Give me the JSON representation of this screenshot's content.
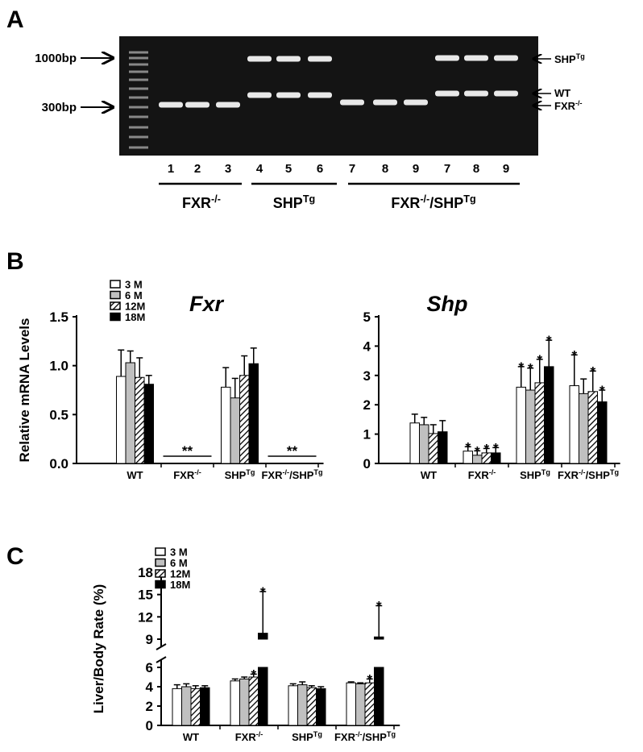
{
  "panels": [
    "A",
    "B",
    "C"
  ],
  "gel": {
    "markers": [
      "1000bp",
      "300bp"
    ],
    "bands": [
      [
        "SHP",
        "Tg"
      ],
      [
        "WT"
      ],
      [
        "FXR",
        "-/-"
      ]
    ],
    "lanes": [
      "1",
      "2",
      "3",
      "4",
      "5",
      "6",
      "7",
      "8",
      "9",
      "7",
      "8",
      "9"
    ],
    "groups": [
      [
        "FXR",
        "-/-"
      ],
      [
        "SHP",
        "Tg"
      ],
      [
        "FXR",
        "-/-",
        "/SHP",
        "Tg"
      ]
    ]
  },
  "chart_data": [
    {
      "type": "bar",
      "title": "Fxr",
      "ylabel": "Relative mRNA Levels",
      "categories": [
        [
          "WT"
        ],
        [
          "FXR",
          "-/-"
        ],
        [
          "SHP",
          "Tg"
        ],
        [
          "FXR",
          "-/-",
          "/SHP",
          "Tg"
        ]
      ],
      "ylim": [
        0,
        1.5
      ],
      "yticks": [
        {
          "value": 0,
          "label": "0.0"
        },
        {
          "value": 0.5,
          "label": "0.5"
        },
        {
          "value": 1,
          "label": "1.0"
        },
        {
          "value": 1.5,
          "label": "1.5"
        }
      ],
      "group_labels": [
        null,
        "**",
        null,
        "**"
      ],
      "series": [
        {
          "name": "3 M",
          "color": "#ffffff",
          "values": [
            0.89,
            0,
            0.78,
            0
          ],
          "errors": [
            0.27,
            0,
            0.2,
            0
          ]
        },
        {
          "name": "6 M",
          "color": "#c0c0c0",
          "values": [
            1.03,
            0,
            0.67,
            0
          ],
          "errors": [
            0.12,
            0,
            0.2,
            0
          ]
        },
        {
          "name": "12M",
          "color": "#000000",
          "hatch": true,
          "values": [
            0.88,
            0,
            0.9,
            0
          ],
          "errors": [
            0.2,
            0,
            0.2,
            0
          ]
        },
        {
          "name": "18M",
          "color": "#000000",
          "values": [
            0.81,
            0,
            1.02,
            0
          ],
          "errors": [
            0.09,
            0,
            0.16,
            0
          ]
        }
      ]
    },
    {
      "type": "bar",
      "title": "Shp",
      "categories": [
        [
          "WT"
        ],
        [
          "FXR",
          "-/-"
        ],
        [
          "SHP",
          "Tg"
        ],
        [
          "FXR",
          "-/-",
          "/SHP",
          "Tg"
        ]
      ],
      "ylim": [
        0,
        5
      ],
      "yticks": [
        0,
        1,
        2,
        3,
        4,
        5
      ],
      "series": [
        {
          "color": "#ffffff",
          "values": [
            1.38,
            0.42,
            2.6,
            2.65
          ],
          "errors": [
            0.3,
            0.15,
            0.7,
            1.05
          ],
          "labels": [
            null,
            "*",
            "*",
            "*"
          ]
        },
        {
          "color": "#c0c0c0",
          "values": [
            1.32,
            0.28,
            2.5,
            2.38
          ],
          "errors": [
            0.25,
            0.15,
            0.75,
            0.5
          ],
          "labels": [
            null,
            "*",
            "*",
            null
          ]
        },
        {
          "color": "#000000",
          "hatch": true,
          "values": [
            1.02,
            0.36,
            2.75,
            2.45
          ],
          "errors": [
            0.3,
            0.15,
            0.8,
            0.7
          ],
          "labels": [
            null,
            "*",
            "*",
            "*"
          ]
        },
        {
          "color": "#000000",
          "values": [
            1.08,
            0.36,
            3.3,
            2.1
          ],
          "errors": [
            0.38,
            0.18,
            0.9,
            0.4
          ],
          "labels": [
            null,
            "*",
            "*",
            "*"
          ]
        }
      ]
    },
    {
      "type": "bar",
      "ylabel": "Liver/Body Rate (%)",
      "categories": [
        [
          "WT"
        ],
        [
          "FXR",
          "-/-"
        ],
        [
          "SHP",
          "Tg"
        ],
        [
          "FXR",
          "-/-",
          "/SHP",
          "Tg"
        ]
      ],
      "ylim": [
        0,
        18
      ],
      "ybreak": [
        6,
        9
      ],
      "yticks": [
        0,
        2,
        4,
        6,
        9,
        12,
        15,
        18
      ],
      "series": [
        {
          "name": "3 M",
          "color": "#ffffff",
          "values": [
            3.8,
            4.6,
            4.1,
            4.4
          ],
          "errors": [
            0.4,
            0.2,
            0.2,
            0.1
          ]
        },
        {
          "name": "6 M",
          "color": "#c0c0c0",
          "values": [
            4.0,
            4.8,
            4.2,
            4.3
          ],
          "errors": [
            0.3,
            0.2,
            0.3,
            0.1
          ]
        },
        {
          "name": "12M",
          "color": "#000000",
          "hatch": true,
          "values": [
            3.8,
            5.0,
            3.9,
            4.4
          ],
          "errors": [
            0.3,
            0.3,
            0.2,
            0.4
          ],
          "labels": [
            null,
            "*",
            null,
            "*"
          ]
        },
        {
          "name": "18M",
          "color": "#000000",
          "values": [
            3.9,
            9.8,
            3.8,
            9.3
          ],
          "errors": [
            0.2,
            5.6,
            0.2,
            4.2
          ],
          "labels": [
            null,
            "*",
            null,
            "*"
          ]
        }
      ]
    }
  ]
}
